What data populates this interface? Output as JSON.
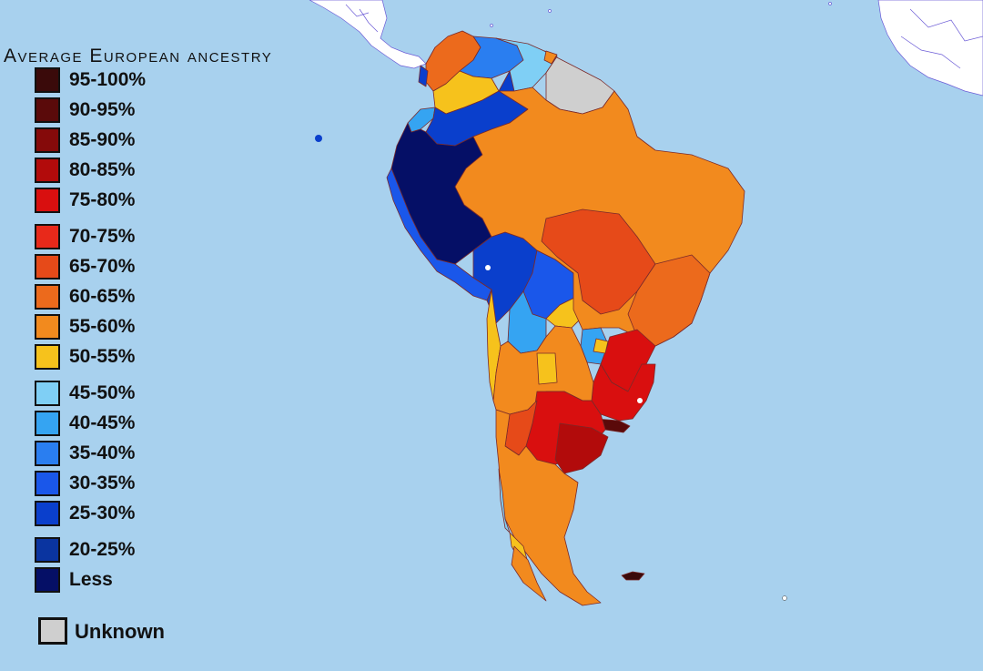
{
  "legend": {
    "title": "Average European ancestry",
    "items": [
      {
        "label": "95-100%",
        "color": "#3a0a0a"
      },
      {
        "label": "90-95%",
        "color": "#5a0a0a"
      },
      {
        "label": "85-90%",
        "color": "#850a0a"
      },
      {
        "label": "80-85%",
        "color": "#b20b0b"
      },
      {
        "label": "75-80%",
        "color": "#d90f0f"
      },
      {
        "label": "70-75%",
        "color": "#e8291a"
      },
      {
        "label": "65-70%",
        "color": "#e64a19"
      },
      {
        "label": "60-65%",
        "color": "#ec6a1c"
      },
      {
        "label": "55-60%",
        "color": "#f28a1e"
      },
      {
        "label": "50-55%",
        "color": "#f6c21c"
      },
      {
        "label": "45-50%",
        "color": "#7fcff5"
      },
      {
        "label": "40-45%",
        "color": "#35a4f2"
      },
      {
        "label": "35-40%",
        "color": "#2a7ef0"
      },
      {
        "label": "30-35%",
        "color": "#1a57ea"
      },
      {
        "label": "25-30%",
        "color": "#0a3fcc"
      },
      {
        "label": "20-25%",
        "color": "#0a34a0"
      },
      {
        "label": "Less",
        "color": "#050f66"
      }
    ],
    "unknown": {
      "label": "Unknown",
      "color": "#cfcfcf"
    }
  },
  "map": {
    "ocean_color": "#a8d1ee",
    "land_outside_color": "#ffffff",
    "border_color": "#7a2a2a"
  }
}
